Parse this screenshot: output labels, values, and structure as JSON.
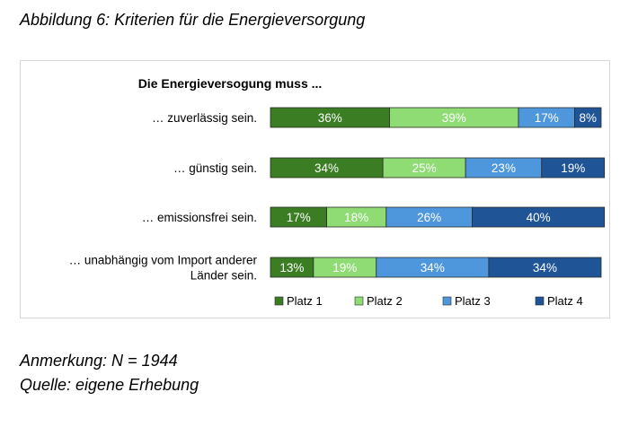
{
  "caption": "Abbildung 6: Kriterien für die Energieversorgung",
  "notes": {
    "sample": "Anmerkung: N = 1944",
    "source": "Quelle: eigene Erhebung"
  },
  "chart_data": {
    "type": "bar",
    "orientation": "horizontal",
    "stacked": true,
    "title": "Die Energieversogung muss ...",
    "categories": [
      "… zuverlässig sein.",
      "… günstig sein.",
      "… emissionsfrei sein.",
      "… unabhängig vom Import anderer Länder sein."
    ],
    "category_lines": [
      [
        "… zuverlässig sein."
      ],
      [
        "… günstig sein."
      ],
      [
        "… emissionsfrei sein."
      ],
      [
        "… unabhängig vom Import anderer",
        "Länder sein."
      ]
    ],
    "series": [
      {
        "name": "Platz 1",
        "values": [
          36,
          34,
          17,
          13
        ],
        "labels": [
          "36%",
          "34%",
          "17%",
          "13%"
        ],
        "color": "#3a7d22"
      },
      {
        "name": "Platz 2",
        "values": [
          39,
          25,
          18,
          19
        ],
        "labels": [
          "39%",
          "25%",
          "18%",
          "19%"
        ],
        "color": "#8fdc75"
      },
      {
        "name": "Platz 3",
        "values": [
          17,
          23,
          26,
          34
        ],
        "labels": [
          "17%",
          "23%",
          "26%",
          "34%"
        ],
        "color": "#4f97dc"
      },
      {
        "name": "Platz 4",
        "values": [
          8,
          19,
          40,
          34
        ],
        "labels": [
          "8%",
          "19%",
          "40%",
          "34%"
        ],
        "color": "#1f5596"
      }
    ],
    "xlim": [
      0,
      100
    ],
    "grid": false,
    "legend_position": "bottom"
  }
}
